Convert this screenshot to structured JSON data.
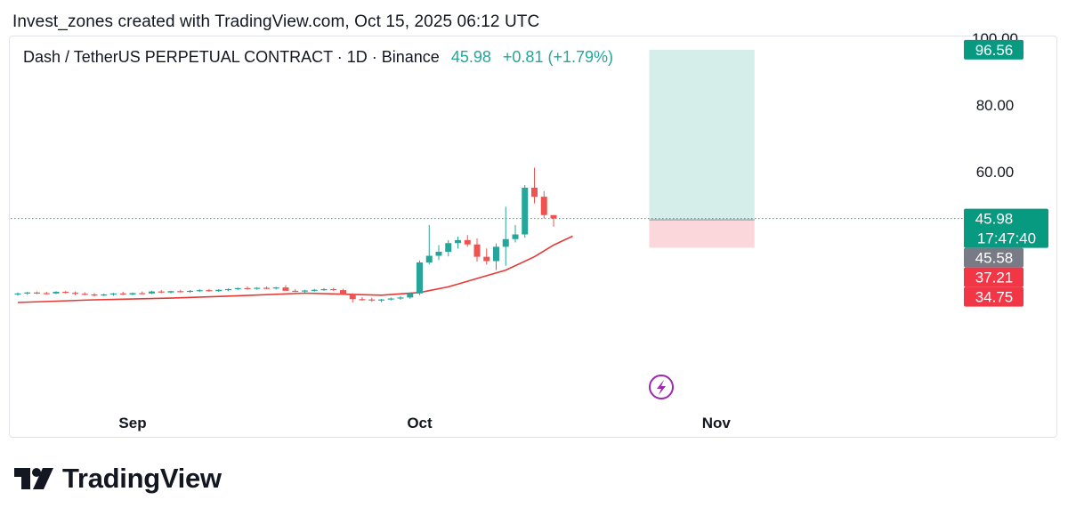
{
  "credit": "Invest_zones created with TradingView.com, Oct 15, 2025 06:12 UTC",
  "legend": {
    "symbol": "Dash / TetherUS PERPETUAL CONTRACT · 1D · Binance",
    "price": "45.98",
    "change": "+0.81 (+1.79%)"
  },
  "brand": {
    "wordmark": "TradingView",
    "logo_icon": "tradingview-logo-icon"
  },
  "colors": {
    "up": "#26a69a",
    "down": "#ef5350",
    "ma": "#e53935",
    "target_zone": "#d5eee9",
    "stop_zone": "#fbd6da",
    "flash_icon": "#9c27b0"
  },
  "chart_data": {
    "type": "candlestick",
    "title": "",
    "xlabel": "",
    "ylabel": "",
    "ylim": [
      0,
      100
    ],
    "yticks": [
      60,
      80,
      100
    ],
    "ytick_labels": [
      "60.00",
      "80.00",
      "100.00"
    ],
    "xticks": [
      {
        "label": "Sep",
        "day": 12
      },
      {
        "label": "Oct",
        "day": 42
      },
      {
        "label": "Nov",
        "day": 73
      }
    ],
    "current_time_label": "17:47:40",
    "price_labels": [
      {
        "value": 96.56,
        "label": "96.56",
        "color": "#089981"
      },
      {
        "value": 45.98,
        "label": "45.98",
        "color": "#089981"
      },
      {
        "value": 45.58,
        "label": "45.58",
        "color": "#787b86"
      },
      {
        "value": 37.21,
        "label": "37.21",
        "color": "#f23645"
      },
      {
        "value": 34.75,
        "label": "34.75",
        "color": "#f23645"
      }
    ],
    "position": {
      "entry": 45.58,
      "target": 96.56,
      "stop": 37.21,
      "start_day": 66,
      "end_day": 77
    },
    "candles": [
      [
        23.4,
        23.8,
        22.8,
        23.5
      ],
      [
        23.5,
        24.0,
        23.1,
        23.8
      ],
      [
        23.8,
        24.1,
        23.3,
        23.6
      ],
      [
        23.6,
        24.0,
        23.2,
        23.5
      ],
      [
        23.5,
        24.2,
        23.3,
        24.0
      ],
      [
        24.0,
        24.3,
        23.4,
        23.7
      ],
      [
        23.7,
        24.1,
        23.0,
        23.4
      ],
      [
        23.4,
        23.9,
        22.9,
        23.2
      ],
      [
        23.2,
        23.6,
        22.6,
        22.9
      ],
      [
        22.9,
        23.5,
        22.7,
        23.2
      ],
      [
        23.2,
        23.7,
        22.8,
        23.5
      ],
      [
        23.5,
        24.0,
        23.0,
        23.2
      ],
      [
        23.2,
        23.8,
        22.9,
        23.6
      ],
      [
        23.6,
        24.1,
        23.2,
        23.5
      ],
      [
        23.5,
        24.3,
        23.3,
        24.1
      ],
      [
        24.1,
        24.5,
        23.6,
        23.8
      ],
      [
        23.8,
        24.3,
        23.5,
        24.2
      ],
      [
        24.2,
        24.6,
        23.8,
        24.0
      ],
      [
        24.0,
        24.5,
        23.7,
        24.3
      ],
      [
        24.3,
        24.8,
        23.9,
        24.5
      ],
      [
        24.5,
        24.9,
        24.0,
        24.2
      ],
      [
        24.2,
        24.8,
        24.0,
        24.6
      ],
      [
        24.6,
        25.0,
        24.2,
        24.8
      ],
      [
        24.8,
        25.3,
        24.5,
        25.1
      ],
      [
        25.1,
        25.6,
        24.7,
        24.9
      ],
      [
        24.9,
        25.4,
        24.6,
        25.2
      ],
      [
        25.2,
        25.6,
        24.8,
        25.0
      ],
      [
        25.0,
        25.5,
        24.7,
        25.3
      ],
      [
        25.3,
        26.0,
        24.6,
        24.3
      ],
      [
        24.3,
        24.8,
        23.9,
        24.1
      ],
      [
        24.1,
        24.6,
        23.8,
        24.4
      ],
      [
        24.4,
        24.9,
        24.0,
        24.6
      ],
      [
        24.6,
        25.1,
        24.3,
        24.8
      ],
      [
        24.8,
        25.2,
        24.3,
        24.5
      ],
      [
        24.5,
        24.9,
        23.0,
        23.2
      ],
      [
        23.2,
        23.6,
        20.8,
        21.8
      ],
      [
        21.8,
        22.4,
        21.3,
        21.7
      ],
      [
        21.7,
        22.2,
        21.0,
        21.4
      ],
      [
        21.4,
        21.9,
        20.9,
        21.7
      ],
      [
        21.7,
        22.3,
        21.4,
        22.0
      ],
      [
        22.0,
        22.7,
        21.6,
        22.3
      ],
      [
        22.3,
        23.8,
        21.9,
        23.5
      ],
      [
        23.5,
        33.4,
        23.0,
        32.8
      ],
      [
        32.8,
        44.0,
        32.2,
        34.8
      ],
      [
        34.8,
        38.0,
        33.5,
        36.0
      ],
      [
        36.0,
        39.5,
        34.6,
        38.6
      ],
      [
        38.6,
        40.5,
        37.0,
        39.5
      ],
      [
        39.5,
        41.0,
        37.5,
        38.2
      ],
      [
        38.2,
        40.0,
        33.0,
        34.5
      ],
      [
        34.5,
        37.0,
        32.2,
        33.2
      ],
      [
        33.2,
        38.5,
        30.5,
        37.5
      ],
      [
        37.5,
        49.5,
        31.8,
        39.8
      ],
      [
        39.8,
        44.0,
        38.8,
        41.2
      ],
      [
        41.2,
        56.0,
        40.2,
        55.2
      ],
      [
        55.2,
        61.2,
        50.5,
        52.5
      ],
      [
        52.5,
        54.2,
        46.0,
        47.0
      ],
      [
        47.0,
        46.8,
        43.5,
        45.98
      ]
    ],
    "ma": [
      [
        0,
        20.8
      ],
      [
        8,
        21.6
      ],
      [
        16,
        22.1
      ],
      [
        24,
        22.9
      ],
      [
        30,
        23.6
      ],
      [
        38,
        23.0
      ],
      [
        42,
        23.8
      ],
      [
        45,
        25.5
      ],
      [
        48,
        28.0
      ],
      [
        51,
        30.5
      ],
      [
        54,
        34.5
      ],
      [
        56,
        38.0
      ],
      [
        58,
        40.7
      ]
    ]
  }
}
